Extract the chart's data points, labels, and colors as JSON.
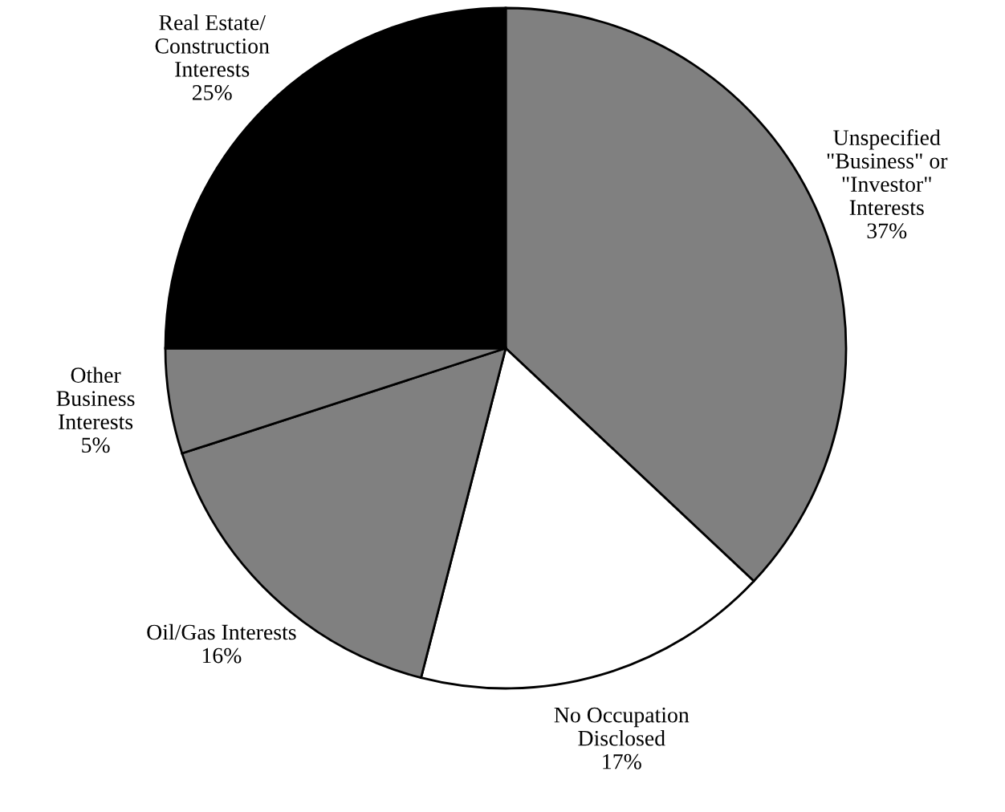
{
  "chart_data": {
    "type": "pie",
    "categories": [
      "Unspecified\n\"Business\" or\n\"Investor\"\nInterests",
      "No Occupation\nDisclosed",
      "Oil/Gas Interests",
      "Other\nBusiness\nInterests",
      "Real Estate/\nConstruction\nInterests"
    ],
    "values": [
      37,
      17,
      16,
      5,
      25
    ],
    "value_labels": [
      "37%",
      "17%",
      "16%",
      "5%",
      "25%"
    ],
    "colors": [
      "#808080",
      "#ffffff",
      "#808080",
      "#808080",
      "#000000"
    ]
  }
}
